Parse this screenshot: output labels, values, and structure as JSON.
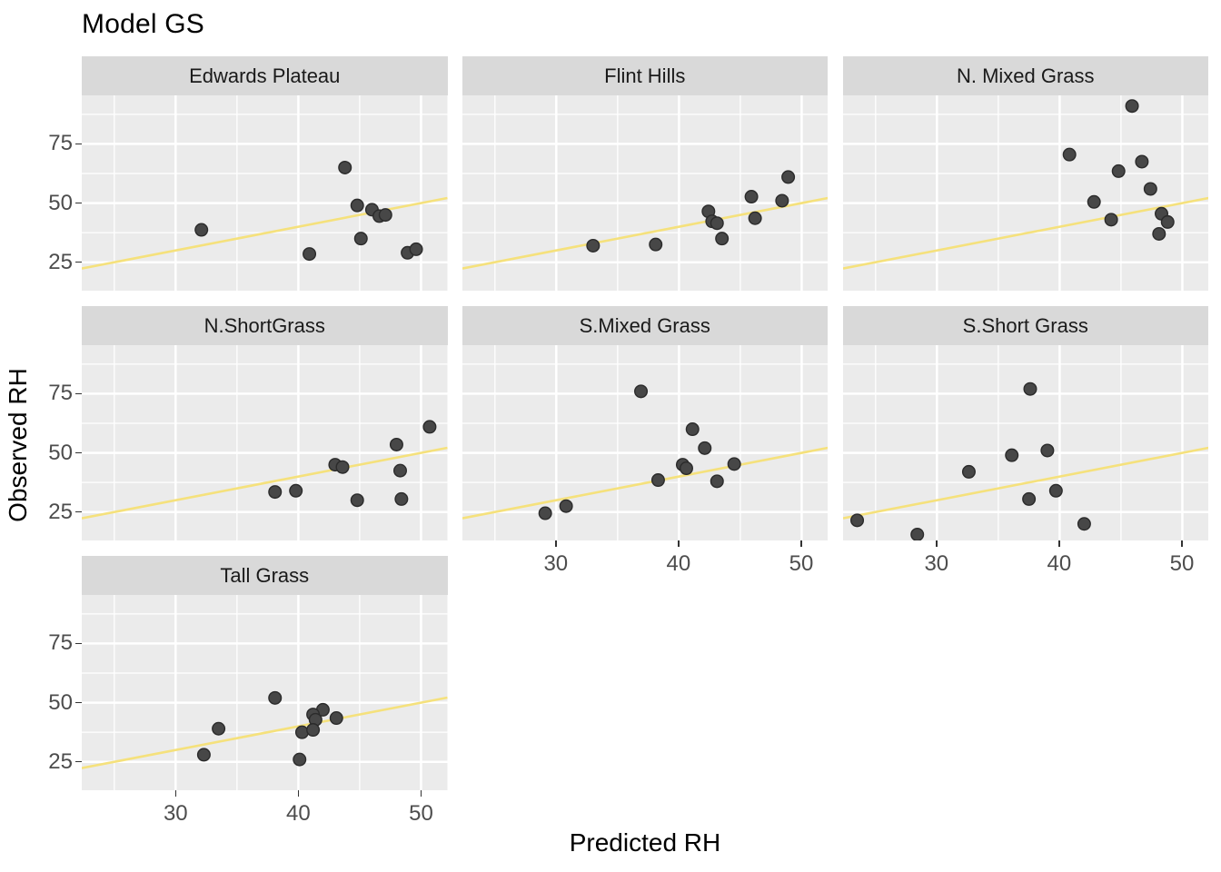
{
  "chart_data": {
    "type": "scatter",
    "title": "Model GS",
    "xlabel": "Predicted RH",
    "ylabel": "Observed RH",
    "x_ticks": [
      30,
      40,
      50
    ],
    "y_ticks": [
      25,
      50,
      75
    ],
    "x_minor_gridlines": [
      25,
      35,
      45
    ],
    "y_minor_gridlines": [
      37.5,
      62.5,
      87.5
    ],
    "xlim": [
      22.35,
      52.15
    ],
    "ylim": [
      13,
      95.5
    ],
    "grid": "on",
    "legend": "none",
    "panel_bg": "#EBEBEB",
    "strip_bg": "#D9D9D9",
    "grid_color": "#FFFFFF",
    "accent_line_color": "#F5E17C",
    "point_fill": "#474747",
    "point_stroke": "#2b2b2b",
    "identity_line": {
      "slope": 1,
      "intercept": 0,
      "color": "#F5E17C"
    },
    "facets": [
      {
        "label": "Edwards Plateau",
        "row": 0,
        "col": 0,
        "points": [
          [
            43.8,
            65
          ],
          [
            44.8,
            49
          ],
          [
            46.0,
            47.2
          ],
          [
            46.6,
            44.5
          ],
          [
            47.1,
            45
          ],
          [
            32.1,
            38.7
          ],
          [
            45.1,
            35
          ],
          [
            40.9,
            28.5
          ],
          [
            48.9,
            29
          ],
          [
            49.6,
            30.5
          ]
        ]
      },
      {
        "label": "Flint Hills",
        "row": 0,
        "col": 1,
        "points": [
          [
            33.0,
            32
          ],
          [
            38.1,
            32.5
          ],
          [
            42.4,
            46.5
          ],
          [
            42.7,
            42.3
          ],
          [
            43.1,
            41.5
          ],
          [
            43.5,
            35
          ],
          [
            45.9,
            52.7
          ],
          [
            46.2,
            43.6
          ],
          [
            48.4,
            51
          ],
          [
            48.9,
            61
          ]
        ]
      },
      {
        "label": "N. Mixed Grass",
        "row": 0,
        "col": 2,
        "points": [
          [
            45.9,
            91
          ],
          [
            40.8,
            70.5
          ],
          [
            46.7,
            67.5
          ],
          [
            44.8,
            63.5
          ],
          [
            47.4,
            56
          ],
          [
            42.8,
            50.5
          ],
          [
            44.2,
            43
          ],
          [
            48.3,
            45.5
          ],
          [
            48.8,
            42
          ],
          [
            48.1,
            37
          ]
        ]
      },
      {
        "label": "N.ShortGrass",
        "row": 1,
        "col": 0,
        "points": [
          [
            50.7,
            61
          ],
          [
            48.0,
            53.5
          ],
          [
            43.0,
            45
          ],
          [
            43.6,
            44
          ],
          [
            48.3,
            42.5
          ],
          [
            38.1,
            33.5
          ],
          [
            39.8,
            34
          ],
          [
            44.8,
            30
          ],
          [
            48.4,
            30.5
          ]
        ]
      },
      {
        "label": "S.Mixed Grass",
        "row": 1,
        "col": 1,
        "points": [
          [
            36.9,
            76
          ],
          [
            41.1,
            60
          ],
          [
            42.1,
            52
          ],
          [
            40.3,
            45
          ],
          [
            40.6,
            43.5
          ],
          [
            44.5,
            45.3
          ],
          [
            38.3,
            38.5
          ],
          [
            43.1,
            38
          ],
          [
            30.8,
            27.5
          ],
          [
            29.1,
            24.5
          ]
        ]
      },
      {
        "label": "S.Short Grass",
        "row": 1,
        "col": 2,
        "points": [
          [
            37.6,
            77
          ],
          [
            39.0,
            51
          ],
          [
            36.1,
            49
          ],
          [
            32.6,
            42
          ],
          [
            39.7,
            34
          ],
          [
            37.5,
            30.5
          ],
          [
            23.5,
            21.5
          ],
          [
            42.0,
            20
          ],
          [
            28.4,
            15.5
          ]
        ]
      },
      {
        "label": "Tall Grass",
        "row": 2,
        "col": 0,
        "points": [
          [
            38.1,
            52
          ],
          [
            42.0,
            47
          ],
          [
            41.2,
            45
          ],
          [
            41.4,
            42.8
          ],
          [
            43.1,
            43.5
          ],
          [
            33.5,
            39
          ],
          [
            40.3,
            37.5
          ],
          [
            41.2,
            38.5
          ],
          [
            32.3,
            28
          ],
          [
            40.1,
            26
          ]
        ]
      }
    ]
  }
}
